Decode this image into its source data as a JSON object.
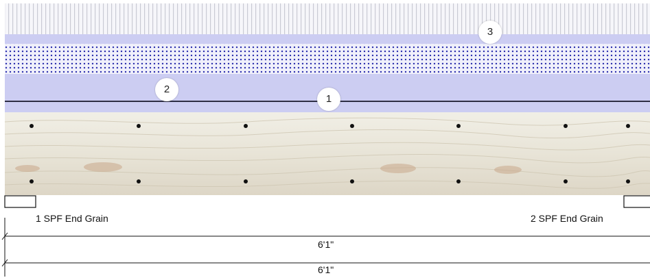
{
  "callouts": [
    {
      "id": "1",
      "text": "1"
    },
    {
      "id": "2",
      "text": "2"
    },
    {
      "id": "3",
      "text": "3"
    }
  ],
  "end_grain": {
    "left_label": "1 SPF End Grain",
    "right_label": "2 SPF End Grain"
  },
  "dimensions": [
    {
      "text": "6'1\""
    },
    {
      "text": "6'1\""
    }
  ],
  "colors": {
    "membrane": "#cccdf2",
    "dot_layer": "#2b2fae",
    "wood": "#ece8dd",
    "stripe": "#e4e5ea",
    "line": "#2d2d44"
  }
}
